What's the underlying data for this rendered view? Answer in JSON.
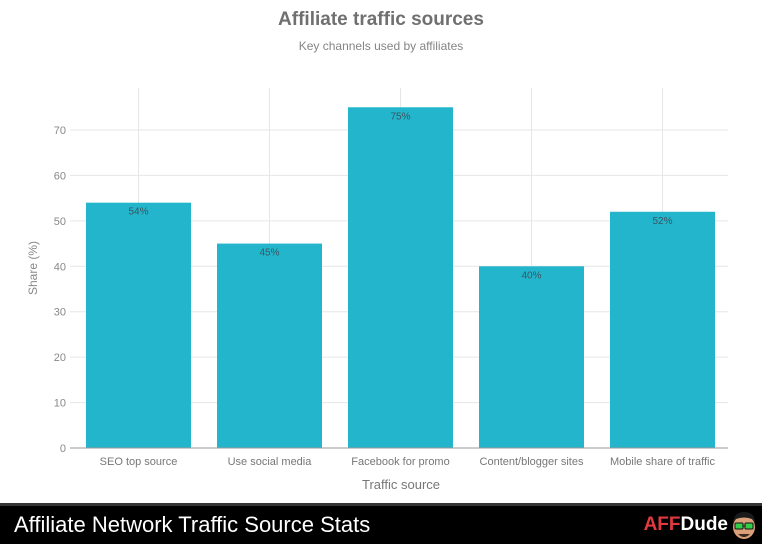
{
  "header": {
    "title": "Affiliate traffic sources",
    "subtitle": "Key channels used by affiliates"
  },
  "footer": {
    "title": "Affiliate Network Traffic Source Stats",
    "logo_part1": "AFF",
    "logo_part2": "Dude"
  },
  "colors": {
    "bar": "#22b5cc",
    "grid": "#e6e6e6",
    "axis": "#999999",
    "label": "#3a5560",
    "logo_accent": "#e0393e"
  },
  "chart_data": {
    "type": "bar",
    "title": "Affiliate traffic sources",
    "subtitle": "Key channels used by affiliates",
    "xlabel": "Traffic source",
    "ylabel": "Share (%)",
    "categories": [
      "SEO top source",
      "Use social media",
      "Facebook for promo",
      "Content/blogger sites",
      "Mobile share of traffic"
    ],
    "values": [
      54,
      45,
      75,
      40,
      52
    ],
    "data_labels": [
      "54%",
      "45%",
      "75%",
      "40%",
      "52%"
    ],
    "ylim": [
      0,
      80
    ],
    "yticks": [
      0,
      10,
      20,
      30,
      40,
      50,
      60,
      70
    ],
    "grid": true,
    "legend": null
  }
}
